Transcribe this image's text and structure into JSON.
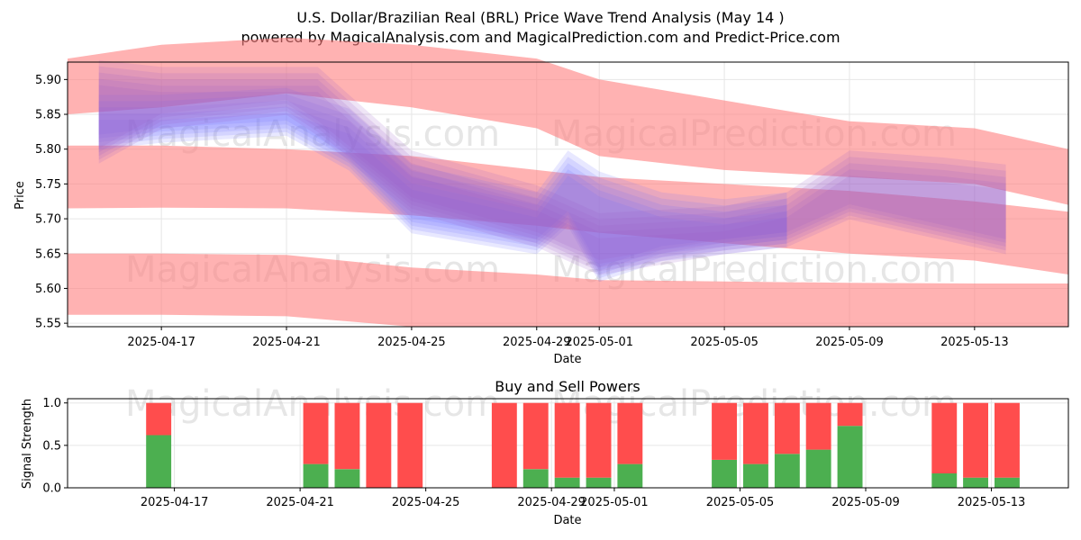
{
  "title": "U.S. Dollar/Brazilian Real (BRL) Price Wave Trend Analysis (May 14 )",
  "subtitle": "powered by MagicalAnalysis.com and MagicalPrediction.com and Predict-Price.com",
  "watermarks": [
    "MagicalAnalysis.com",
    "MagicalPrediction.com"
  ],
  "colors": {
    "red_band": "#ff7f7f",
    "blue_band": "#6f6fff",
    "purple_band": "#9a5fc8",
    "buy": "#4caf50",
    "sell": "#ff4d4d"
  },
  "chart_data": [
    {
      "type": "area",
      "title": "",
      "xlabel": "Date",
      "ylabel": "Price",
      "xlim": [
        "2025-04-14",
        "2025-05-16"
      ],
      "ylim": [
        5.545,
        5.925
      ],
      "xticks": [
        "2025-04-17",
        "2025-04-21",
        "2025-04-25",
        "2025-04-29",
        "2025-05-01",
        "2025-05-05",
        "2025-05-09",
        "2025-05-13"
      ],
      "yticks": [
        5.55,
        5.6,
        5.65,
        5.7,
        5.75,
        5.8,
        5.85,
        5.9
      ],
      "grid": true,
      "bands": [
        {
          "name": "upper red band",
          "color": "red",
          "x": [
            "2025-04-14",
            "2025-04-17",
            "2025-04-21",
            "2025-04-25",
            "2025-04-29",
            "2025-05-01",
            "2025-05-05",
            "2025-05-09",
            "2025-05-13",
            "2025-05-16"
          ],
          "upper": [
            5.93,
            5.95,
            5.96,
            5.95,
            5.93,
            5.9,
            5.87,
            5.84,
            5.83,
            5.8
          ],
          "lower": [
            5.85,
            5.86,
            5.88,
            5.86,
            5.83,
            5.79,
            5.77,
            5.76,
            5.75,
            5.72
          ]
        },
        {
          "name": "middle red band",
          "color": "red",
          "x": [
            "2025-04-14",
            "2025-04-17",
            "2025-04-21",
            "2025-04-25",
            "2025-04-29",
            "2025-05-01",
            "2025-05-05",
            "2025-05-09",
            "2025-05-13",
            "2025-05-16"
          ],
          "upper": [
            5.805,
            5.805,
            5.8,
            5.79,
            5.77,
            5.76,
            5.75,
            5.74,
            5.725,
            5.71
          ],
          "lower": [
            5.715,
            5.716,
            5.715,
            5.705,
            5.69,
            5.68,
            5.665,
            5.65,
            5.64,
            5.62
          ]
        },
        {
          "name": "lower red band",
          "color": "red",
          "x": [
            "2025-04-14",
            "2025-04-17",
            "2025-04-21",
            "2025-04-25",
            "2025-04-29",
            "2025-05-01",
            "2025-05-05",
            "2025-05-09",
            "2025-05-13",
            "2025-05-16"
          ],
          "upper": [
            5.65,
            5.65,
            5.648,
            5.63,
            5.62,
            5.612,
            5.61,
            5.608,
            5.607,
            5.607
          ],
          "lower": [
            5.562,
            5.562,
            5.56,
            5.545,
            5.545,
            5.545,
            5.545,
            5.545,
            5.545,
            5.545
          ]
        },
        {
          "name": "blue band",
          "color": "blue",
          "x": [
            "2025-04-15",
            "2025-04-17",
            "2025-04-21",
            "2025-04-23",
            "2025-04-25",
            "2025-04-29",
            "2025-04-30",
            "2025-05-01",
            "2025-05-03",
            "2025-05-05",
            "2025-05-07"
          ],
          "upper": [
            5.86,
            5.86,
            5.87,
            5.84,
            5.76,
            5.72,
            5.78,
            5.75,
            5.72,
            5.71,
            5.72
          ],
          "lower": [
            5.81,
            5.82,
            5.83,
            5.78,
            5.69,
            5.66,
            5.7,
            5.62,
            5.65,
            5.66,
            5.67
          ]
        },
        {
          "name": "purple band",
          "color": "purple",
          "x": [
            "2025-04-15",
            "2025-04-17",
            "2025-04-21",
            "2025-04-22",
            "2025-04-25",
            "2025-04-29",
            "2025-05-01",
            "2025-05-05",
            "2025-05-07",
            "2025-05-09",
            "2025-05-12",
            "2025-05-14"
          ],
          "upper": [
            5.91,
            5.9,
            5.9,
            5.9,
            5.78,
            5.73,
            5.69,
            5.7,
            5.72,
            5.78,
            5.77,
            5.76
          ],
          "lower": [
            5.79,
            5.84,
            5.86,
            5.83,
            5.72,
            5.67,
            5.63,
            5.66,
            5.67,
            5.71,
            5.68,
            5.66
          ]
        }
      ]
    },
    {
      "type": "bar",
      "stacked": true,
      "title": "Buy and Sell Powers",
      "xlabel": "Date",
      "ylabel": "Signal Strength",
      "ylim": [
        0,
        1.05
      ],
      "yticks": [
        "0.0",
        "0.5",
        "1.0"
      ],
      "xticks": [
        "2025-04-17",
        "2025-04-21",
        "2025-04-25",
        "2025-04-29",
        "2025-05-01",
        "2025-05-05",
        "2025-05-09",
        "2025-05-13"
      ],
      "categories": [
        "2025-04-16",
        "2025-04-21",
        "2025-04-22",
        "2025-04-23",
        "2025-04-24",
        "2025-04-27",
        "2025-04-28",
        "2025-04-29",
        "2025-04-30",
        "2025-05-01",
        "2025-05-04",
        "2025-05-05",
        "2025-05-06",
        "2025-05-07",
        "2025-05-08",
        "2025-05-11",
        "2025-05-12",
        "2025-05-13"
      ],
      "series": [
        {
          "name": "Buy",
          "color": "green",
          "values": [
            0.62,
            0.28,
            0.22,
            0.0,
            0.0,
            0.0,
            0.22,
            0.12,
            0.12,
            0.28,
            0.33,
            0.28,
            0.4,
            0.45,
            0.73,
            0.17,
            0.12,
            0.12
          ]
        },
        {
          "name": "Sell",
          "color": "red",
          "values": [
            0.38,
            0.72,
            0.78,
            1.0,
            1.0,
            1.0,
            0.78,
            0.88,
            0.88,
            0.72,
            0.67,
            0.72,
            0.6,
            0.55,
            0.27,
            0.83,
            0.88,
            0.88
          ]
        }
      ]
    }
  ]
}
